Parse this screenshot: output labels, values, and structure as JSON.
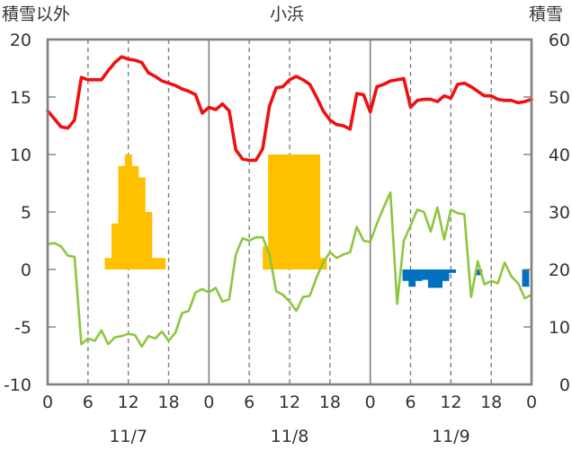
{
  "header": {
    "left_axis_label": "積雪以外",
    "title": "小浜",
    "right_axis_label": "積雪"
  },
  "chart_data": {
    "type": "line",
    "x_unit_hours": true,
    "x_range": [
      0,
      72
    ],
    "x_ticks": [
      0,
      6,
      12,
      18,
      24,
      30,
      36,
      42,
      48,
      54,
      60,
      66,
      72
    ],
    "x_tick_labels": [
      "0",
      "6",
      "12",
      "18",
      "0",
      "6",
      "12",
      "18",
      "0",
      "6",
      "12",
      "18",
      "0"
    ],
    "date_labels": [
      {
        "hour": 12,
        "text": "11/7"
      },
      {
        "hour": 36,
        "text": "11/8"
      },
      {
        "hour": 60,
        "text": "11/9"
      }
    ],
    "ylim_left": [
      -10,
      20
    ],
    "yticks_left": [
      20,
      15,
      10,
      5,
      0,
      -5,
      -10
    ],
    "ylim_right": [
      0,
      60
    ],
    "yticks_right": [
      60,
      50,
      40,
      30,
      20,
      10,
      0
    ],
    "grid": "dashed vertical at 6h, solid vertical at day boundaries",
    "colors": {
      "temperature": "#ee1111",
      "wind": "#8dc63f",
      "precipitation": "#ffc000",
      "sunshine": "#0070c0",
      "frame": "#808080",
      "grid": "#808080"
    },
    "series": [
      {
        "key": "temperature",
        "axis": "left",
        "x": [
          0,
          1,
          2,
          3,
          4,
          5,
          6,
          7,
          8,
          9,
          10,
          11,
          12,
          13,
          14,
          15,
          16,
          17,
          18,
          19,
          20,
          21,
          22,
          23,
          24,
          25,
          26,
          27,
          28,
          29,
          30,
          31,
          32,
          33,
          34,
          35,
          36,
          37,
          38,
          39,
          40,
          41,
          42,
          43,
          44,
          45,
          46,
          47,
          48,
          49,
          50,
          51,
          52,
          53,
          54,
          55,
          56,
          57,
          58,
          59,
          60,
          61,
          62,
          63,
          64,
          65,
          66,
          67,
          68,
          69,
          70,
          71,
          72
        ],
        "values": [
          13.8,
          13.1,
          12.4,
          12.3,
          13.0,
          16.7,
          16.5,
          16.5,
          16.5,
          17.3,
          18.0,
          18.5,
          18.3,
          18.2,
          18.0,
          17.1,
          16.8,
          16.4,
          16.2,
          16.0,
          15.7,
          15.5,
          15.2,
          13.6,
          14.1,
          13.9,
          14.4,
          13.8,
          10.4,
          9.6,
          9.5,
          9.5,
          10.5,
          14.2,
          15.8,
          15.9,
          16.5,
          16.8,
          16.5,
          16.1,
          15.0,
          13.8,
          13.0,
          12.6,
          12.5,
          12.2,
          15.3,
          15.2,
          13.7,
          15.9,
          16.1,
          16.4,
          16.5,
          16.6,
          14.1,
          14.7,
          14.8,
          14.8,
          14.6,
          15.1,
          14.9,
          16.1,
          16.2,
          15.9,
          15.5,
          15.1,
          15.1,
          14.8,
          14.7,
          14.7,
          14.5,
          14.6,
          14.8
        ]
      },
      {
        "key": "wind",
        "axis": "left",
        "x": [
          0,
          1,
          2,
          3,
          4,
          5,
          6,
          7,
          8,
          9,
          10,
          11,
          12,
          13,
          14,
          15,
          16,
          17,
          18,
          19,
          20,
          21,
          22,
          23,
          24,
          25,
          26,
          27,
          28,
          29,
          30,
          31,
          32,
          33,
          34,
          35,
          36,
          37,
          38,
          39,
          40,
          41,
          42,
          43,
          44,
          45,
          46,
          47,
          48,
          49,
          50,
          51,
          52,
          53,
          54,
          55,
          56,
          57,
          58,
          59,
          60,
          61,
          62,
          63,
          64,
          65,
          66,
          67,
          68,
          69,
          70,
          71,
          72
        ],
        "values": [
          2.2,
          2.3,
          2.0,
          1.2,
          1.1,
          -6.5,
          -6.0,
          -6.2,
          -5.3,
          -6.5,
          -5.9,
          -5.8,
          -5.6,
          -5.7,
          -6.7,
          -5.8,
          -6.0,
          -5.4,
          -6.2,
          -5.5,
          -3.8,
          -3.6,
          -2.0,
          -1.7,
          -2.0,
          -1.6,
          -2.8,
          -2.6,
          1.3,
          2.7,
          2.5,
          2.8,
          2.8,
          1.3,
          -1.9,
          -2.2,
          -2.8,
          -3.6,
          -2.4,
          -2.3,
          -0.7,
          0.6,
          1.5,
          1.0,
          1.3,
          1.5,
          3.7,
          2.5,
          2.4,
          4.0,
          5.4,
          6.7,
          -3.0,
          2.5,
          3.8,
          5.2,
          5.0,
          3.3,
          5.4,
          2.6,
          5.2,
          4.9,
          4.8,
          -2.4,
          0.7,
          -1.3,
          -1.0,
          -1.2,
          0.6,
          -0.6,
          -1.2,
          -2.5,
          -2.2
        ]
      },
      {
        "key": "precipitation",
        "type": "bar",
        "axis": "left",
        "bars": [
          {
            "x0": 8.5,
            "x1": 9.5,
            "value": 1.0
          },
          {
            "x0": 9.5,
            "x1": 10.5,
            "value": 4.0
          },
          {
            "x0": 10.5,
            "x1": 11.5,
            "value": 9.0
          },
          {
            "x0": 11.5,
            "x1": 12.5,
            "value": 10.0
          },
          {
            "x0": 12.5,
            "x1": 13.5,
            "value": 9.0
          },
          {
            "x0": 13.5,
            "x1": 14.5,
            "value": 8.0
          },
          {
            "x0": 14.5,
            "x1": 15.5,
            "value": 5.0
          },
          {
            "x0": 15.5,
            "x1": 17.5,
            "value": 1.0
          },
          {
            "x0": 32.0,
            "x1": 32.8,
            "value": 2.0
          },
          {
            "x0": 32.8,
            "x1": 40.5,
            "value": 10.0
          },
          {
            "x0": 40.5,
            "x1": 41.5,
            "value": 1.0
          }
        ]
      },
      {
        "key": "sunshine",
        "type": "bar",
        "axis": "left",
        "bars": [
          {
            "x0": 52.8,
            "x1": 53.7,
            "value": -1.0
          },
          {
            "x0": 53.7,
            "x1": 54.7,
            "value": -1.5
          },
          {
            "x0": 54.7,
            "x1": 55.7,
            "value": -1.0
          },
          {
            "x0": 55.7,
            "x1": 56.6,
            "value": -0.9
          },
          {
            "x0": 56.6,
            "x1": 57.6,
            "value": -1.6
          },
          {
            "x0": 57.6,
            "x1": 58.7,
            "value": -1.6
          },
          {
            "x0": 58.7,
            "x1": 59.7,
            "value": -1.0
          },
          {
            "x0": 59.7,
            "x1": 60.7,
            "value": -0.3
          },
          {
            "x0": 63.6,
            "x1": 64.6,
            "value": -0.5
          },
          {
            "x0": 70.6,
            "x1": 71.6,
            "value": -1.5
          }
        ]
      }
    ]
  }
}
